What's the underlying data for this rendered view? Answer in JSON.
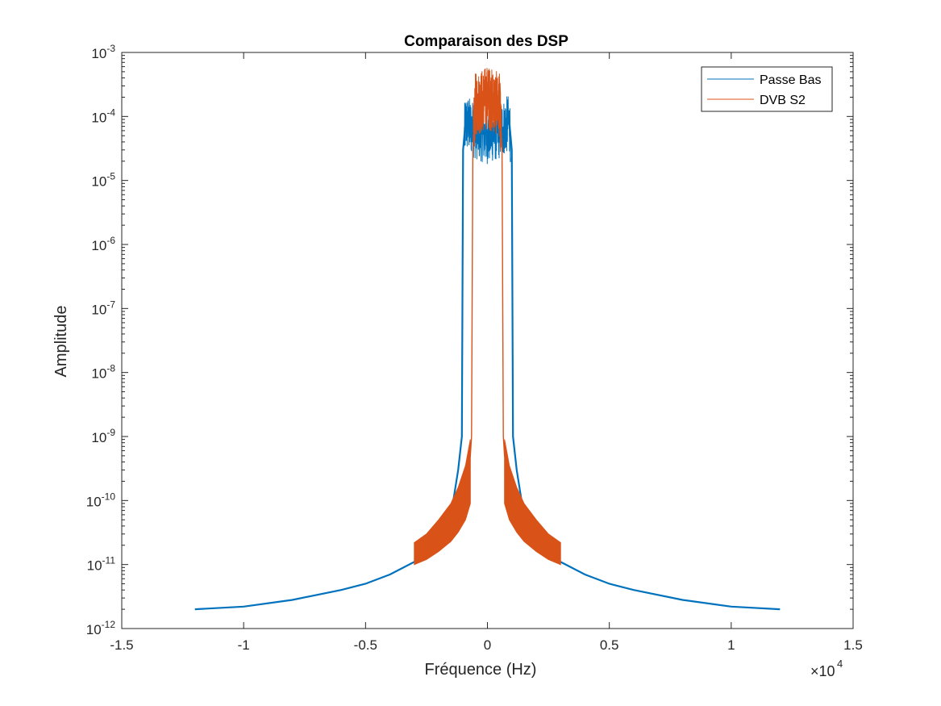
{
  "chart_data": {
    "type": "line",
    "title": "Comparaison des DSP",
    "xlabel": "Fréquence (Hz)",
    "ylabel": "Amplitude",
    "x_multiplier": "×10",
    "x_multiplier_exp": "4",
    "xlim": [
      -15000,
      15000
    ],
    "ylim": [
      1e-12,
      0.001
    ],
    "y_scale": "log",
    "x_ticks": [
      -1.5,
      -1,
      -0.5,
      0,
      0.5,
      1,
      1.5
    ],
    "x_tick_labels": [
      "-1.5",
      "-1",
      "-0.5",
      "0",
      "0.5",
      "1",
      "1.5"
    ],
    "y_ticks": [
      1e-12,
      1e-11,
      1e-10,
      1e-09,
      1e-08,
      1e-07,
      1e-06,
      1e-05,
      0.0001,
      0.001
    ],
    "y_tick_exponents": [
      "-12",
      "-11",
      "-10",
      "-9",
      "-8",
      "-7",
      "-6",
      "-5",
      "-4",
      "-3"
    ],
    "y_tick_base": "10",
    "grid": false,
    "legend_position": "top-right",
    "series": [
      {
        "name": "Passe Bas",
        "color": "#0072BD",
        "points": [
          [
            -12000,
            2e-12
          ],
          [
            -10000,
            2.2e-12
          ],
          [
            -8000,
            2.8e-12
          ],
          [
            -6000,
            4e-12
          ],
          [
            -5000,
            5e-12
          ],
          [
            -4000,
            7e-12
          ],
          [
            -3000,
            1.1e-11
          ],
          [
            -2500,
            1.5e-11
          ],
          [
            -2000,
            2.5e-11
          ],
          [
            -1600,
            5e-11
          ],
          [
            -1400,
            1e-10
          ],
          [
            -1200,
            3e-10
          ],
          [
            -1050,
            1e-09
          ],
          [
            -1000,
            3e-05
          ],
          [
            -900,
            8e-05
          ],
          [
            -500,
            6e-05
          ],
          [
            0,
            5e-05
          ],
          [
            500,
            6e-05
          ],
          [
            900,
            8e-05
          ],
          [
            1000,
            3e-05
          ],
          [
            1050,
            1e-09
          ],
          [
            1200,
            3e-10
          ],
          [
            1400,
            1e-10
          ],
          [
            1600,
            5e-11
          ],
          [
            2000,
            2.5e-11
          ],
          [
            2500,
            1.5e-11
          ],
          [
            3000,
            1.1e-11
          ],
          [
            4000,
            7e-12
          ],
          [
            5000,
            5e-12
          ],
          [
            6000,
            4e-12
          ],
          [
            8000,
            2.8e-12
          ],
          [
            10000,
            2.2e-12
          ],
          [
            12000,
            2e-12
          ]
        ]
      },
      {
        "name": "DVB S2",
        "color": "#D95319",
        "points": [
          [
            -3000,
            1.5e-11
          ],
          [
            -2500,
            2e-11
          ],
          [
            -2000,
            3e-11
          ],
          [
            -1500,
            5e-11
          ],
          [
            -1200,
            1e-10
          ],
          [
            -900,
            2e-10
          ],
          [
            -700,
            5e-10
          ],
          [
            -650,
            1e-09
          ],
          [
            -600,
            3e-05
          ],
          [
            -500,
            0.00015
          ],
          [
            0,
            0.0002
          ],
          [
            500,
            0.00015
          ],
          [
            600,
            3e-05
          ],
          [
            650,
            1e-09
          ],
          [
            700,
            5e-10
          ],
          [
            900,
            2e-10
          ],
          [
            1200,
            1e-10
          ],
          [
            1500,
            5e-11
          ],
          [
            2000,
            3e-11
          ],
          [
            2500,
            2e-11
          ],
          [
            3000,
            1.5e-11
          ]
        ],
        "band_points": [
          [
            -3000,
            1e-11,
            2.2e-11
          ],
          [
            -2500,
            1.2e-11,
            3e-11
          ],
          [
            -2000,
            1.6e-11,
            5e-11
          ],
          [
            -1500,
            2.3e-11,
            9e-11
          ],
          [
            -1200,
            3.2e-11,
            1.6e-10
          ],
          [
            -900,
            5e-11,
            3.5e-10
          ],
          [
            -700,
            9e-11,
            9e-10
          ],
          [
            700,
            9e-11,
            9e-10
          ],
          [
            900,
            5e-11,
            3.5e-10
          ],
          [
            1200,
            3.2e-11,
            1.6e-10
          ],
          [
            1500,
            2.3e-11,
            9e-11
          ],
          [
            2000,
            1.6e-11,
            5e-11
          ],
          [
            2500,
            1.2e-11,
            3e-11
          ],
          [
            3000,
            1e-11,
            2.2e-11
          ]
        ]
      }
    ]
  }
}
